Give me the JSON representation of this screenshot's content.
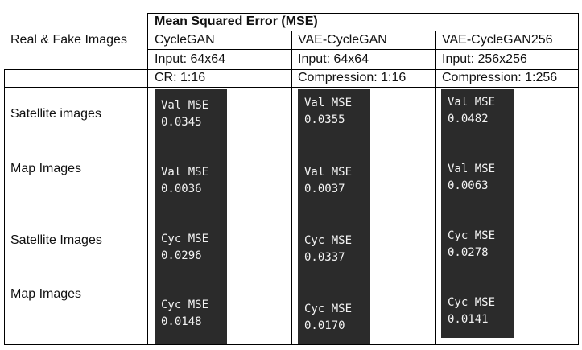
{
  "table": {
    "header_title": "Mean Squared Error (MSE)",
    "row_header_label": "Real & Fake Images",
    "columns": [
      {
        "model": "CycleGAN",
        "input": "Input: 64x64",
        "compression": "CR: 1:16"
      },
      {
        "model": "VAE-CycleGAN",
        "input": "Input: 64x64",
        "compression": "Compression: 1:16"
      },
      {
        "model": "VAE-CycleGAN256",
        "input": "Input: 256x256",
        "compression": "Compression: 1:256"
      }
    ],
    "row_labels": [
      "Satellite images",
      "Map Images",
      "Satellite Images",
      "Map Images"
    ],
    "metrics": [
      [
        {
          "label": "Val MSE",
          "value": "0.0345"
        },
        {
          "label": "Val MSE",
          "value": "0.0036"
        },
        {
          "label": "Cyc MSE",
          "value": "0.0296"
        },
        {
          "label": "Cyc MSE",
          "value": "0.0148"
        }
      ],
      [
        {
          "label": "Val MSE",
          "value": "0.0355"
        },
        {
          "label": "Val MSE",
          "value": "0.0037"
        },
        {
          "label": "Cyc MSE",
          "value": "0.0337"
        },
        {
          "label": "Cyc MSE",
          "value": "0.0170"
        }
      ],
      [
        {
          "label": "Val MSE",
          "value": "0.0482"
        },
        {
          "label": "Val MSE",
          "value": "0.0063"
        },
        {
          "label": "Cyc MSE",
          "value": "0.0278"
        },
        {
          "label": "Cyc MSE",
          "value": "0.0141"
        }
      ]
    ]
  },
  "colors": {
    "panel_background": "#2b2b2b",
    "panel_text": "#f2f2f2",
    "grid_line": "#000000"
  }
}
